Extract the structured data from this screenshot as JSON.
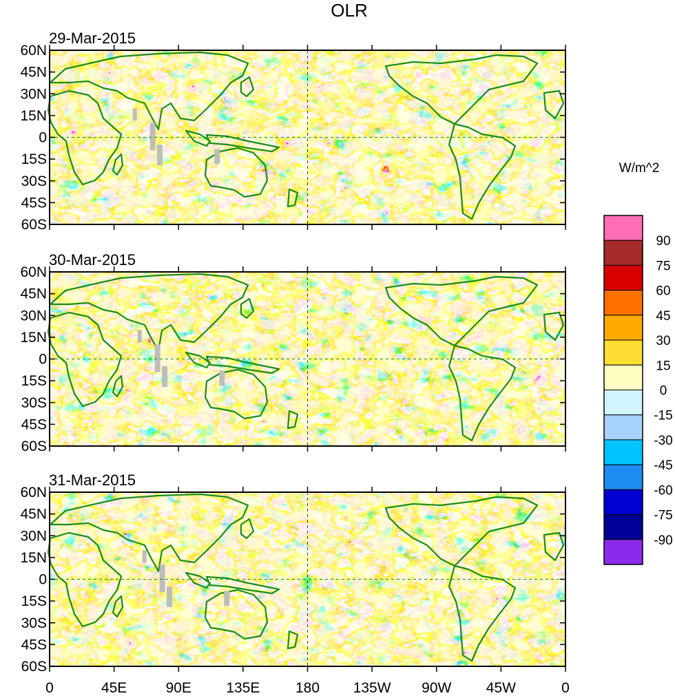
{
  "chart_data": {
    "type": "heatmap",
    "title": "OLR",
    "units": "W/m^2",
    "panels": [
      {
        "date": "29-Mar-2015"
      },
      {
        "date": "30-Mar-2015"
      },
      {
        "date": "31-Mar-2015"
      }
    ],
    "lat_ticks": [
      "60N",
      "45N",
      "30N",
      "15N",
      "0",
      "15S",
      "30S",
      "45S",
      "60S"
    ],
    "lat_values": [
      60,
      45,
      30,
      15,
      0,
      -15,
      -30,
      -45,
      -60
    ],
    "lon_ticks": [
      "0",
      "45E",
      "90E",
      "135E",
      "180",
      "135W",
      "90W",
      "45W",
      "0"
    ],
    "lon_values": [
      0,
      45,
      90,
      135,
      180,
      225,
      270,
      315,
      360
    ],
    "xlim": [
      0,
      360
    ],
    "ylim": [
      -60,
      60
    ],
    "colorbar": {
      "levels": [
        "90",
        "75",
        "60",
        "45",
        "30",
        "15",
        "0",
        "-15",
        "-30",
        "-45",
        "-60",
        "-75",
        "-90"
      ],
      "colors": [
        "#ff6eb4",
        "#a52a2a",
        "#d90000",
        "#ff7000",
        "#ffaa00",
        "#ffdd33",
        "#ffffc4",
        "#d2f4ff",
        "#a6d2fb",
        "#00c3ff",
        "#1e8cf0",
        "#0000d2",
        "#000096",
        "#8c2aeb"
      ]
    }
  }
}
